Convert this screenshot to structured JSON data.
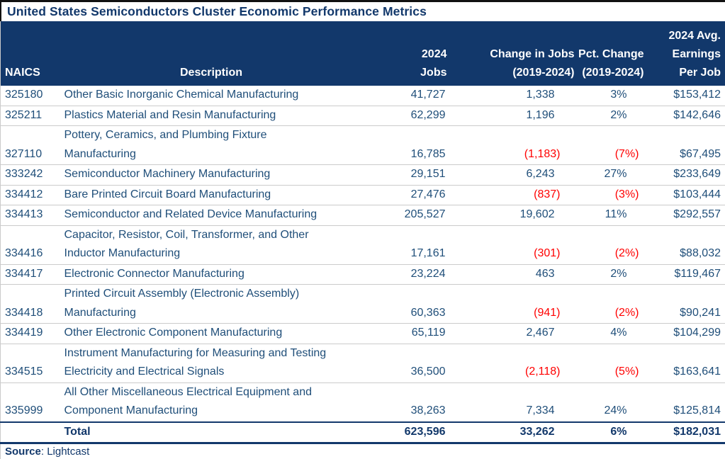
{
  "title": "United States Semiconductors Cluster Economic Performance Metrics",
  "colors": {
    "navy": "#12386B",
    "body_text": "#1F4E79",
    "negative": "#FF0000",
    "grid": "#CBCBCB"
  },
  "table": {
    "headers": {
      "naics": "NAICS",
      "description": "Description",
      "jobs": "2024\nJobs",
      "change": "Change in Jobs\n(2019-2024)",
      "pct": "Pct. Change\n(2019-2024)",
      "earnings": "2024 Avg.\nEarnings\nPer Job"
    },
    "rows": [
      {
        "naics": "325180",
        "desc": "Other Basic Inorganic Chemical Manufacturing",
        "jobs": "41,727",
        "change": "1,338",
        "pct": "3%",
        "earnings": "$153,412"
      },
      {
        "naics": "325211",
        "desc": "Plastics Material and Resin Manufacturing",
        "jobs": "62,299",
        "change": "1,196",
        "pct": "2%",
        "earnings": "$142,646"
      },
      {
        "naics": "327110",
        "desc": "Pottery, Ceramics, and Plumbing Fixture\nManufacturing",
        "jobs": "16,785",
        "change": "(1,183)",
        "pct": "(7%)",
        "earnings": "$67,495"
      },
      {
        "naics": "333242",
        "desc": "Semiconductor Machinery Manufacturing",
        "jobs": "29,151",
        "change": "6,243",
        "pct": "27%",
        "earnings": "$233,649"
      },
      {
        "naics": "334412",
        "desc": "Bare Printed Circuit Board Manufacturing",
        "jobs": "27,476",
        "change": "(837)",
        "pct": "(3%)",
        "earnings": "$103,444"
      },
      {
        "naics": "334413",
        "desc": "Semiconductor and Related Device Manufacturing",
        "jobs": "205,527",
        "change": "19,602",
        "pct": "11%",
        "earnings": "$292,557"
      },
      {
        "naics": "334416",
        "desc": "Capacitor, Resistor, Coil, Transformer, and Other\nInductor Manufacturing",
        "jobs": "17,161",
        "change": "(301)",
        "pct": "(2%)",
        "earnings": "$88,032"
      },
      {
        "naics": "334417",
        "desc": "Electronic Connector Manufacturing",
        "jobs": "23,224",
        "change": "463",
        "pct": "2%",
        "earnings": "$119,467"
      },
      {
        "naics": "334418",
        "desc": "Printed Circuit Assembly (Electronic Assembly)\nManufacturing",
        "jobs": "60,363",
        "change": "(941)",
        "pct": "(2%)",
        "earnings": "$90,241"
      },
      {
        "naics": "334419",
        "desc": "Other Electronic Component Manufacturing",
        "jobs": "65,119",
        "change": "2,467",
        "pct": "4%",
        "earnings": "$104,299"
      },
      {
        "naics": "334515",
        "desc": "Instrument Manufacturing for Measuring and Testing\nElectricity and Electrical Signals",
        "jobs": "36,500",
        "change": "(2,118)",
        "pct": "(5%)",
        "earnings": "$163,641"
      },
      {
        "naics": "335999",
        "desc": "All Other Miscellaneous Electrical Equipment and\nComponent Manufacturing",
        "jobs": "38,263",
        "change": "7,334",
        "pct": "24%",
        "earnings": "$125,814"
      }
    ],
    "total": {
      "label": "Total",
      "jobs": "623,596",
      "change": "33,262",
      "pct": "6%",
      "earnings": "$182,031"
    }
  },
  "footer": {
    "source_label": "Source",
    "source_rest": ": Lightcast"
  }
}
